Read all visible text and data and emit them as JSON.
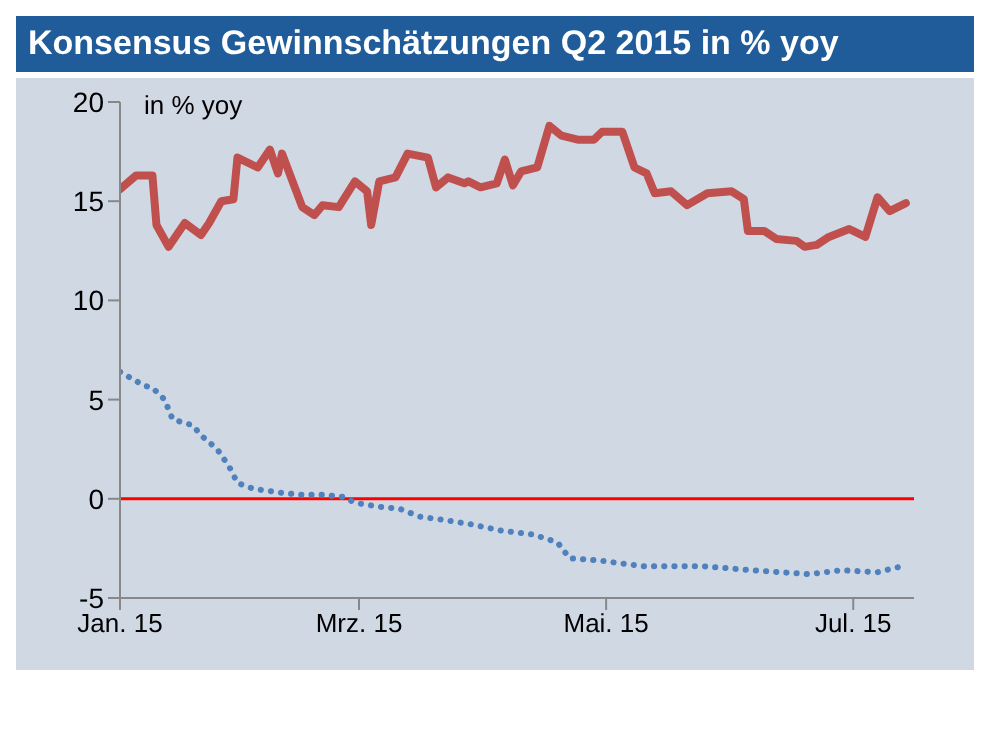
{
  "chart_data": {
    "type": "line",
    "title": "Konsensus Gewinnschätzungen Q2 2015 in % yoy",
    "ylabel": "in % yoy",
    "xlim": [
      "2015-01-01",
      "2015-07-16"
    ],
    "xticks": [
      {
        "value": "2015-01-01",
        "label": "Jan. 15"
      },
      {
        "value": "2015-03-01",
        "label": "Mrz. 15"
      },
      {
        "value": "2015-05-01",
        "label": "Mai. 15"
      },
      {
        "value": "2015-07-01",
        "label": "Jul. 15"
      }
    ],
    "ylim": [
      -5,
      20
    ],
    "yticks": [
      -5,
      0,
      5,
      10,
      15,
      20
    ],
    "ref_lines": [
      {
        "axis": "y",
        "value": 0,
        "color": "#ff0000"
      }
    ],
    "series": [
      {
        "color": "#4f81bd",
        "line_style": "dotted",
        "x": [
          "2015-01-01",
          "2015-01-07",
          "2015-01-09",
          "2015-01-12",
          "2015-01-14",
          "2015-01-19",
          "2015-01-21",
          "2015-01-25",
          "2015-01-28",
          "2015-01-30",
          "2015-02-03",
          "2015-02-10",
          "2015-02-15",
          "2015-02-20",
          "2015-02-25",
          "2015-02-28",
          "2015-03-06",
          "2015-03-11",
          "2015-03-16",
          "2015-03-23",
          "2015-03-29",
          "2015-04-05",
          "2015-04-13",
          "2015-04-19",
          "2015-04-22",
          "2015-04-29",
          "2015-05-10",
          "2015-05-25",
          "2015-06-06",
          "2015-06-20",
          "2015-06-28",
          "2015-07-07",
          "2015-07-13"
        ],
        "values": [
          6.4,
          5.7,
          5.6,
          5.0,
          4.0,
          3.7,
          3.2,
          2.5,
          1.6,
          0.8,
          0.5,
          0.3,
          0.2,
          0.2,
          0.1,
          -0.2,
          -0.4,
          -0.5,
          -0.9,
          -1.1,
          -1.3,
          -1.6,
          -1.8,
          -2.2,
          -3.0,
          -3.1,
          -3.4,
          -3.4,
          -3.6,
          -3.8,
          -3.6,
          -3.7,
          -3.4
        ]
      },
      {
        "color": "#c0504d",
        "line_style": "solid",
        "x": [
          "2015-01-01",
          "2015-01-05",
          "2015-01-09",
          "2015-01-10",
          "2015-01-13",
          "2015-01-17",
          "2015-01-21",
          "2015-01-23",
          "2015-01-26",
          "2015-01-29",
          "2015-01-30",
          "2015-02-04",
          "2015-02-07",
          "2015-02-09",
          "2015-02-10",
          "2015-02-15",
          "2015-02-18",
          "2015-02-20",
          "2015-02-24",
          "2015-02-28",
          "2015-03-03",
          "2015-03-04",
          "2015-03-06",
          "2015-03-10",
          "2015-03-13",
          "2015-03-18",
          "2015-03-20",
          "2015-03-23",
          "2015-03-27",
          "2015-03-28",
          "2015-03-31",
          "2015-04-04",
          "2015-04-06",
          "2015-04-08",
          "2015-04-10",
          "2015-04-14",
          "2015-04-17",
          "2015-04-20",
          "2015-04-24",
          "2015-04-28",
          "2015-04-30",
          "2015-05-05",
          "2015-05-08",
          "2015-05-11",
          "2015-05-13",
          "2015-05-17",
          "2015-05-21",
          "2015-05-26",
          "2015-06-01",
          "2015-06-04",
          "2015-06-05",
          "2015-06-09",
          "2015-06-12",
          "2015-06-17",
          "2015-06-19",
          "2015-06-22",
          "2015-06-25",
          "2015-06-30",
          "2015-07-04",
          "2015-07-07",
          "2015-07-10",
          "2015-07-14"
        ],
        "values": [
          15.6,
          16.3,
          16.3,
          13.8,
          12.7,
          13.9,
          13.3,
          13.9,
          15.0,
          15.1,
          17.2,
          16.7,
          17.6,
          16.4,
          17.4,
          14.7,
          14.3,
          14.8,
          14.7,
          16.0,
          15.5,
          13.8,
          16.0,
          16.2,
          17.4,
          17.2,
          15.7,
          16.2,
          15.9,
          16.0,
          15.7,
          15.9,
          17.1,
          15.8,
          16.5,
          16.7,
          18.8,
          18.3,
          18.1,
          18.1,
          18.5,
          18.5,
          16.7,
          16.4,
          15.4,
          15.5,
          14.8,
          15.4,
          15.5,
          15.1,
          13.5,
          13.5,
          13.1,
          13.0,
          12.7,
          12.8,
          13.2,
          13.6,
          13.2,
          15.2,
          14.5,
          14.9
        ]
      }
    ]
  }
}
